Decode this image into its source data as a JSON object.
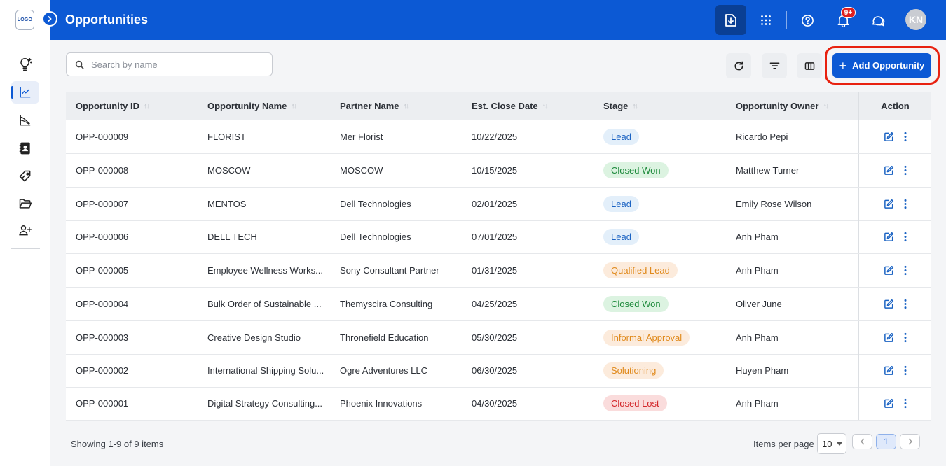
{
  "app": {
    "logo_text": "LOGO",
    "title": "Opportunities",
    "notification_badge": "9+",
    "user_initials": "KN"
  },
  "sidebar": {
    "items": [
      {
        "name": "ideas",
        "icon": "lightbulb-sparkle-icon",
        "active": false
      },
      {
        "name": "opportunities",
        "icon": "line-chart-icon",
        "active": true
      },
      {
        "name": "analytics",
        "icon": "trend-chart-icon",
        "active": false
      },
      {
        "name": "contacts",
        "icon": "contact-book-icon",
        "active": false
      },
      {
        "name": "deals",
        "icon": "price-tag-icon",
        "active": false
      },
      {
        "name": "files",
        "icon": "folder-open-icon",
        "active": false
      },
      {
        "name": "add-user",
        "icon": "user-plus-icon",
        "active": false
      }
    ]
  },
  "toolbar": {
    "search_placeholder": "Search by name",
    "add_label": "Add Opportunity"
  },
  "table": {
    "columns": [
      "Opportunity ID",
      "Opportunity Name",
      "Partner Name",
      "Est. Close Date",
      "Stage",
      "Opportunity Owner"
    ],
    "action_header": "Action",
    "rows": [
      {
        "id": "OPP-000009",
        "name": "FLORIST",
        "partner": "Mer Florist",
        "date": "10/22/2025",
        "stage": "Lead",
        "stage_type": "lead",
        "owner": "Ricardo Pepi"
      },
      {
        "id": "OPP-000008",
        "name": "MOSCOW",
        "partner": "MOSCOW",
        "date": "10/15/2025",
        "stage": "Closed Won",
        "stage_type": "won",
        "owner": "Matthew Turner"
      },
      {
        "id": "OPP-000007",
        "name": "MENTOS",
        "partner": "Dell Technologies",
        "date": "02/01/2025",
        "stage": "Lead",
        "stage_type": "lead",
        "owner": "Emily Rose Wilson"
      },
      {
        "id": "OPP-000006",
        "name": "DELL TECH",
        "partner": "Dell Technologies",
        "date": "07/01/2025",
        "stage": "Lead",
        "stage_type": "lead",
        "owner": "Anh Pham"
      },
      {
        "id": "OPP-000005",
        "name": "Employee Wellness Works...",
        "partner": "Sony Consultant Partner",
        "date": "01/31/2025",
        "stage": "Qualified Lead",
        "stage_type": "orange",
        "owner": "Anh Pham"
      },
      {
        "id": "OPP-000004",
        "name": "Bulk Order of Sustainable ...",
        "partner": "Themyscira Consulting",
        "date": "04/25/2025",
        "stage": "Closed Won",
        "stage_type": "won",
        "owner": "Oliver June"
      },
      {
        "id": "OPP-000003",
        "name": "Creative Design Studio",
        "partner": "Thronefield Education",
        "date": "05/30/2025",
        "stage": "Informal Approval",
        "stage_type": "orange",
        "owner": "Anh Pham"
      },
      {
        "id": "OPP-000002",
        "name": "International Shipping Solu...",
        "partner": "Ogre Adventures LLC",
        "date": "06/30/2025",
        "stage": "Solutioning",
        "stage_type": "orange",
        "owner": "Huyen Pham"
      },
      {
        "id": "OPP-000001",
        "name": "Digital Strategy Consulting...",
        "partner": "Phoenix Innovations",
        "date": "04/30/2025",
        "stage": "Closed Lost",
        "stage_type": "lost",
        "owner": "Anh Pham"
      }
    ]
  },
  "footer": {
    "showing": "Showing 1-9 of 9 items",
    "items_per_page_label": "Items per page",
    "items_per_page": "10",
    "current_page": "1"
  },
  "colors": {
    "primary": "#0c59d4",
    "highlight": "#e8210f",
    "badge": "#e0201f"
  }
}
